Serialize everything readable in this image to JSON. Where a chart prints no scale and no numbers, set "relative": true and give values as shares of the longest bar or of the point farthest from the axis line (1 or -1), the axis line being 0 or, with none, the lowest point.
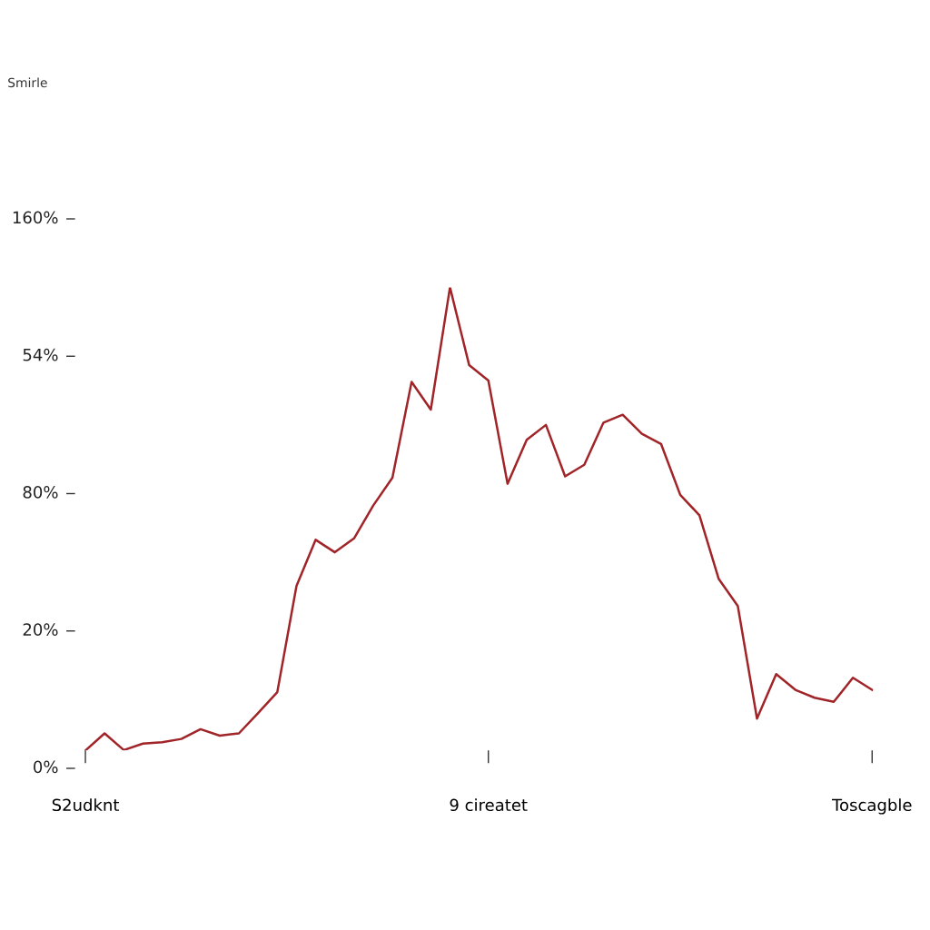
{
  "chart_data": {
    "type": "line",
    "title": "Smirle",
    "relative": true,
    "annotations": [
      "160%",
      "54%",
      "80%",
      "20%",
      "0%"
    ],
    "categories": [
      "S2udknt",
      null,
      null,
      null,
      null,
      null,
      null,
      null,
      null,
      null,
      null,
      null,
      null,
      null,
      null,
      null,
      null,
      null,
      null,
      null,
      null,
      "9 cireatet",
      null,
      null,
      null,
      null,
      null,
      null,
      null,
      null,
      null,
      null,
      null,
      null,
      null,
      null,
      null,
      null,
      null,
      null,
      null,
      "Toscagble"
    ],
    "grid": false,
    "marker": "none",
    "line_style": "solid",
    "series": [
      {
        "color": "#a02428",
        "values": [
          0,
          0.037,
          0.001,
          0.015,
          0.018,
          0.025,
          0.046,
          0.032,
          0.037,
          0.081,
          0.126,
          0.355,
          0.455,
          0.428,
          0.458,
          0.529,
          0.589,
          0.796,
          0.736,
          1,
          0.832,
          0.799,
          0.576,
          0.671,
          0.703,
          0.592,
          0.617,
          0.708,
          0.725,
          0.684,
          0.662,
          0.552,
          0.508,
          0.371,
          0.312,
          0.069,
          0.165,
          0.131,
          0.114,
          0.105,
          0.157,
          0.131
        ]
      }
    ]
  }
}
